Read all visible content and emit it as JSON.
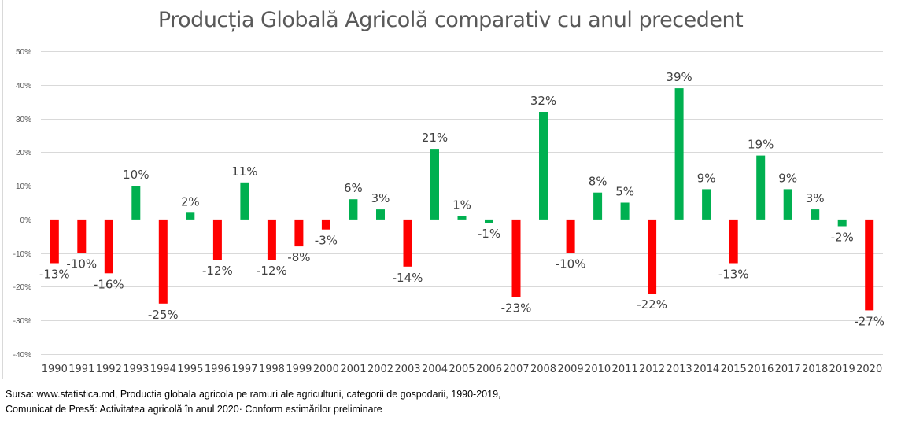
{
  "chart_data": {
    "type": "bar",
    "title": "Producția Globală Agricolă comparativ cu anul precedent",
    "xlabel": "",
    "ylabel": "",
    "ylim": [
      -0.4,
      0.5
    ],
    "yticks": [
      0.5,
      0.4,
      0.3,
      0.2,
      0.1,
      0,
      -0.1,
      -0.2,
      -0.3,
      -0.4
    ],
    "ytick_labels": [
      "50%",
      "40%",
      "30%",
      "20%",
      "10%",
      "0%",
      "-10%",
      "-20%",
      "-30%",
      "-40%"
    ],
    "grid": true,
    "legend": "none",
    "categories": [
      "1990",
      "1991",
      "1992",
      "1993",
      "1994",
      "1995",
      "1996",
      "1997",
      "1998",
      "1999",
      "2000",
      "2001",
      "2002",
      "2003",
      "2004",
      "2005",
      "2006",
      "2007",
      "2008",
      "2009",
      "2010",
      "2011",
      "2012",
      "2013",
      "2014",
      "2015",
      "2016",
      "2017",
      "2018",
      "2019",
      "2020"
    ],
    "values": [
      -0.13,
      -0.1,
      -0.16,
      0.1,
      -0.25,
      0.02,
      -0.12,
      0.11,
      -0.12,
      -0.08,
      -0.03,
      0.06,
      0.03,
      -0.14,
      0.21,
      0.01,
      -0.01,
      -0.23,
      0.32,
      -0.1,
      0.08,
      0.05,
      -0.22,
      0.39,
      0.09,
      -0.13,
      0.19,
      0.09,
      0.03,
      -0.02,
      -0.27
    ],
    "data_labels": [
      "-13%",
      "-10%",
      "-16%",
      "10%",
      "-25%",
      "2%",
      "-12%",
      "11%",
      "-12%",
      "-8%",
      "-3%",
      "6%",
      "3%",
      "-14%",
      "21%",
      "1%",
      "-1%",
      "-23%",
      "32%",
      "-10%",
      "8%",
      "5%",
      "-22%",
      "39%",
      "9%",
      "-13%",
      "19%",
      "9%",
      "3%",
      "-2%",
      "-27%"
    ],
    "bar_colors": [
      "red",
      "red",
      "red",
      "green",
      "red",
      "green",
      "red",
      "green",
      "red",
      "red",
      "red",
      "green",
      "green",
      "red",
      "green",
      "green",
      "green",
      "red",
      "green",
      "red",
      "green",
      "green",
      "red",
      "green",
      "green",
      "red",
      "green",
      "green",
      "green",
      "green",
      "red"
    ],
    "colors": {
      "green": "#00b050",
      "red": "#ff0000",
      "grid": "#d9d9d9"
    }
  },
  "source": {
    "line1": "Sursa: www.statistica.md, Productia globala agricola pe ramuri ale agriculturii, categorii de gospodarii, 1990-2019,",
    "line2": "Comunicat de Presă: Activitatea agricolă în anul 2020· Conform estimărilor preliminare"
  }
}
